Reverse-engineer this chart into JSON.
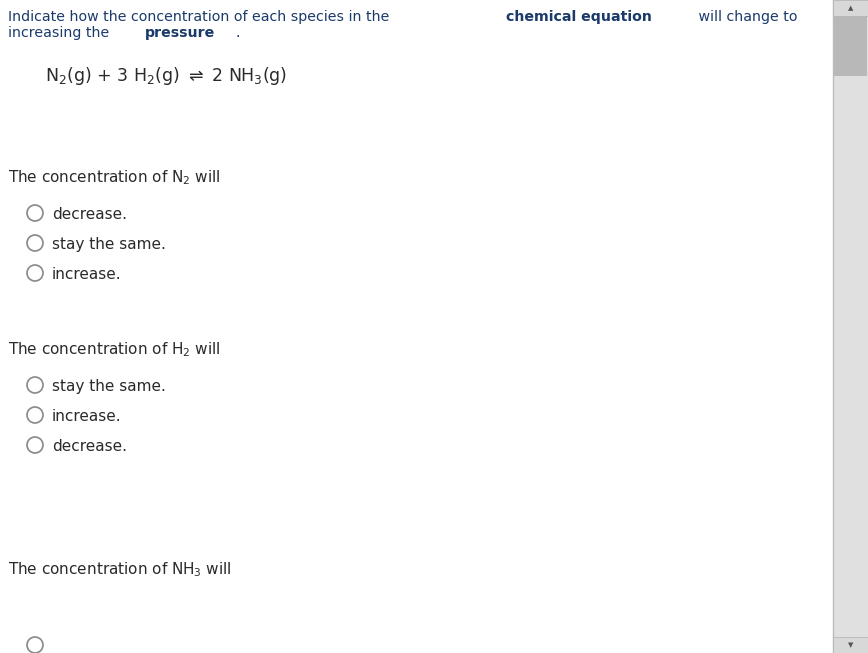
{
  "background_color": "#ffffff",
  "instruction_color_normal": "#1a3a6a",
  "instruction_color_highlight": "#1a3a6a",
  "text_color": "#2a2a2a",
  "scrollbar_bg": "#d0d0d0",
  "scrollbar_thumb": "#b0b0b0",
  "scrollbar_line": "#bbbbbb",
  "circle_edge_color": "#888888",
  "circle_face_color": "#ffffff",
  "font_size_instruction": 10.2,
  "font_size_equation": 12.5,
  "font_size_section_label": 11.0,
  "font_size_options": 11.0,
  "sections": [
    {
      "options": [
        "decrease.",
        "stay the same.",
        "increase."
      ]
    },
    {
      "options": [
        "stay the same.",
        "increase.",
        "decrease."
      ]
    },
    {
      "options": []
    }
  ]
}
